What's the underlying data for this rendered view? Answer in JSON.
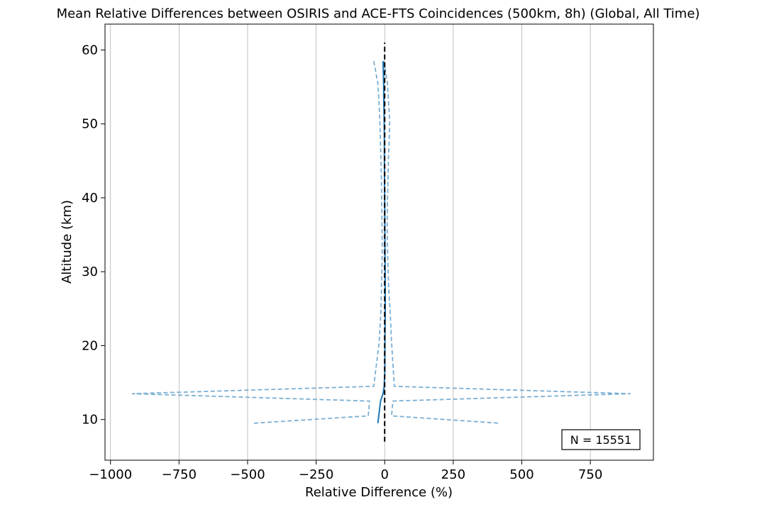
{
  "chart_data": {
    "type": "line",
    "title": "Mean Relative Differences between OSIRIS and ACE-FTS Coincidences (500km, 8h) (Global, All Time)",
    "xlabel": "Relative Difference (%)",
    "ylabel": "Altitude (km)",
    "xlim": [
      -1020,
      980
    ],
    "ylim": [
      4.5,
      63.5
    ],
    "xticks": [
      -1000,
      -750,
      -500,
      -250,
      0,
      250,
      500,
      750
    ],
    "xtick_labels": [
      "−1000",
      "−750",
      "−500",
      "−250",
      "0",
      "250",
      "500",
      "750"
    ],
    "yticks": [
      10,
      20,
      30,
      40,
      50,
      60
    ],
    "ytick_labels": [
      "10",
      "20",
      "30",
      "40",
      "50",
      "60"
    ],
    "grid": "x-only",
    "colors": {
      "mean": "#1f77b4",
      "bounds": "#7bafd4",
      "zero": "#000000"
    },
    "annotation": "N = 15551",
    "annotation_placement": "bottom-right",
    "series": [
      {
        "role": "mean",
        "style": "solid",
        "x": [
          -6,
          -4,
          -3,
          -2,
          -1.5,
          -1,
          -0.5,
          0,
          0.5,
          1,
          1.5,
          2,
          2,
          1,
          0.5,
          -2,
          -6,
          -15,
          -25
        ],
        "y": [
          58.5,
          55.5,
          52.5,
          50.5,
          48.5,
          45.5,
          42.5,
          39.5,
          36.5,
          33.5,
          30.5,
          27.5,
          24.5,
          20.5,
          16.5,
          14.5,
          13.5,
          12.5,
          9.5
        ]
      },
      {
        "role": "upper-bound",
        "style": "dashed",
        "x": [
          -3,
          10,
          15,
          18,
          17,
          14,
          12,
          10,
          9,
          10,
          12,
          15,
          20,
          25,
          35,
          895,
          30,
          25,
          420
        ],
        "y": [
          58.5,
          55.5,
          52.5,
          50.5,
          48.5,
          45.5,
          42.5,
          39.5,
          36.5,
          33.5,
          30.5,
          27.5,
          24.5,
          20.5,
          14.5,
          13.5,
          12.5,
          10.5,
          9.5
        ]
      },
      {
        "role": "lower-bound",
        "style": "dashed",
        "x": [
          -40,
          -25,
          -20,
          -18,
          -16,
          -14,
          -12,
          -11,
          -10,
          -9,
          -10,
          -12,
          -14,
          -20,
          -40,
          -920,
          -55,
          -60,
          -480
        ],
        "y": [
          58.5,
          55.5,
          52.5,
          50.5,
          48.5,
          45.5,
          42.5,
          39.5,
          36.5,
          33.5,
          30.5,
          27.5,
          24.5,
          20.5,
          14.5,
          13.5,
          12.5,
          10.5,
          9.5
        ]
      },
      {
        "role": "zero-reference",
        "style": "dashed",
        "x": [
          0,
          0
        ],
        "y": [
          7,
          61
        ]
      }
    ]
  }
}
